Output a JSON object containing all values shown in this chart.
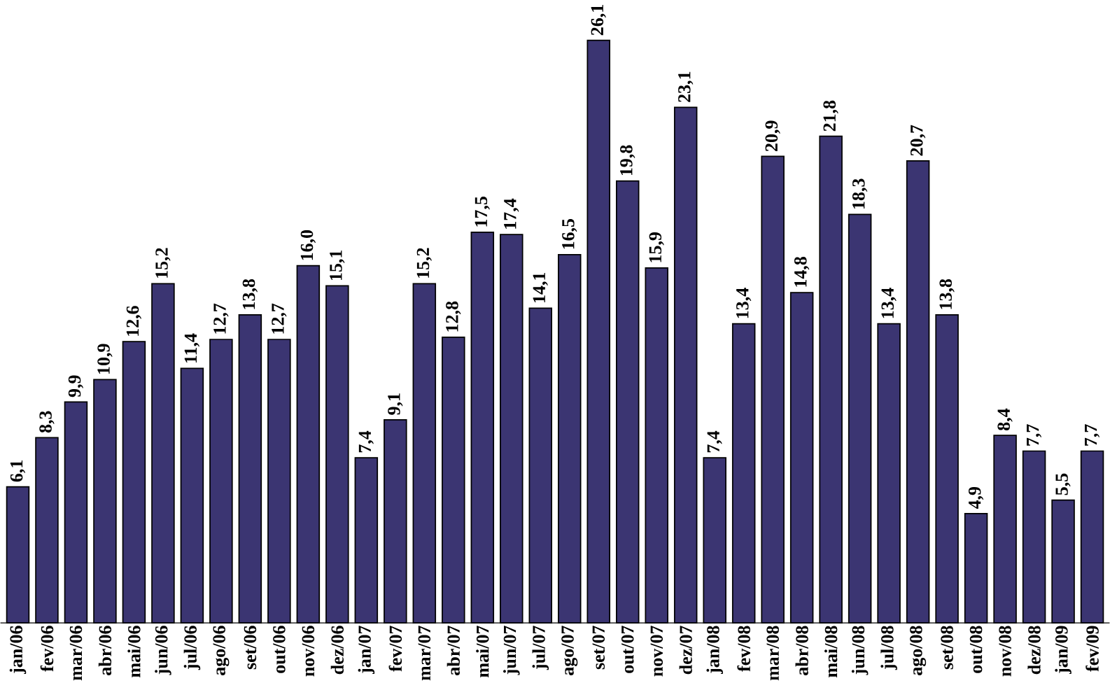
{
  "chart_data": {
    "type": "bar",
    "categories": [
      "jan/06",
      "fev/06",
      "mar/06",
      "abr/06",
      "mai/06",
      "jun/06",
      "jul/06",
      "ago/06",
      "set/06",
      "out/06",
      "nov/06",
      "dez/06",
      "jan/07",
      "fev/07",
      "mar/07",
      "abr/07",
      "mai/07",
      "jun/07",
      "jul/07",
      "ago/07",
      "set/07",
      "out/07",
      "nov/07",
      "dez/07",
      "jan/08",
      "fev/08",
      "mar/08",
      "abr/08",
      "mai/08",
      "jun/08",
      "jul/08",
      "ago/08",
      "set/08",
      "out/08",
      "nov/08",
      "dez/08",
      "jan/09",
      "fev/09"
    ],
    "values": [
      6.1,
      8.3,
      9.9,
      10.9,
      12.6,
      15.2,
      11.4,
      12.7,
      13.8,
      12.7,
      16.0,
      15.1,
      7.4,
      9.1,
      15.2,
      12.8,
      17.5,
      17.4,
      14.1,
      16.5,
      26.1,
      19.8,
      15.9,
      23.1,
      7.4,
      13.4,
      20.9,
      14.8,
      21.8,
      18.3,
      13.4,
      20.7,
      13.8,
      4.9,
      8.4,
      7.7,
      5.5,
      7.7
    ],
    "value_labels": [
      "6,1",
      "8,3",
      "9,9",
      "10,9",
      "12,6",
      "15,2",
      "11,4",
      "12,7",
      "13,8",
      "12,7",
      "16,0",
      "15,1",
      "7,4",
      "9,1",
      "15,2",
      "12,8",
      "17,5",
      "17,4",
      "14,1",
      "16,5",
      "26,1",
      "19,8",
      "15,9",
      "23,1",
      "7,4",
      "13,4",
      "20,9",
      "14,8",
      "21,8",
      "18,3",
      "13,4",
      "20,7",
      "13,8",
      "4,9",
      "8,4",
      "7,7",
      "5,5",
      "7,7"
    ],
    "color": "#3b3572",
    "ylim": [
      0,
      26.1
    ],
    "tick_labels": "x"
  }
}
